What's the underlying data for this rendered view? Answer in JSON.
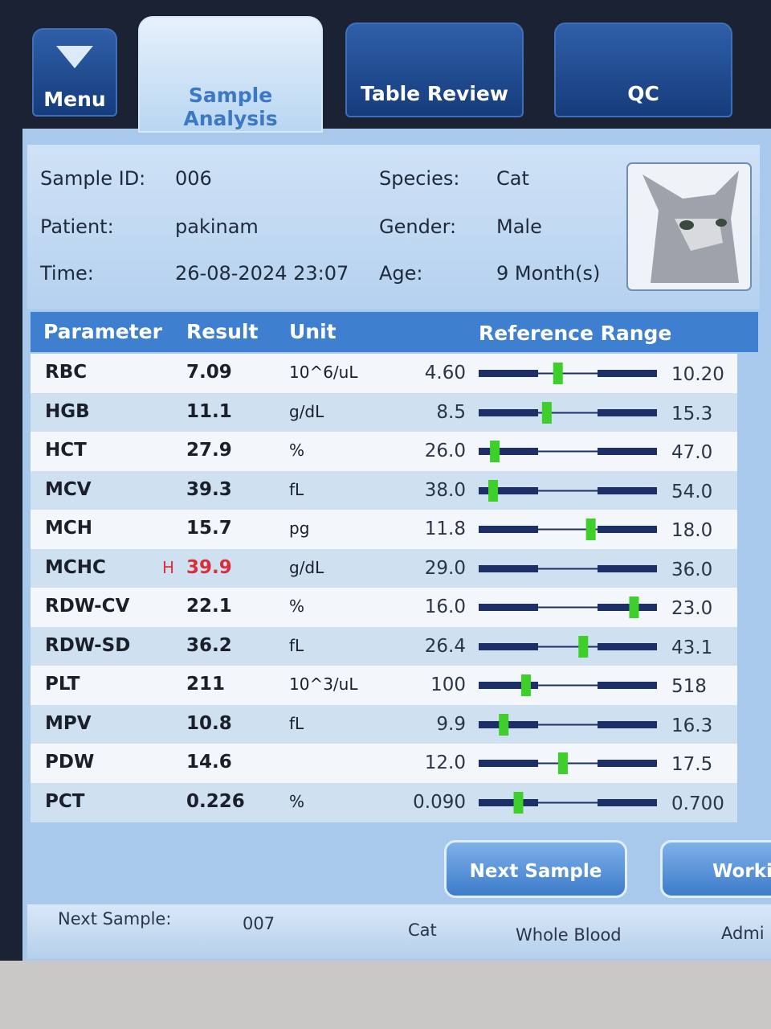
{
  "tabs": [
    "Menu",
    "Sample Analysis",
    "Table Review",
    "QC"
  ],
  "info": [
    {
      "label": "Sample ID:",
      "value": "006"
    },
    {
      "label": "Species:",
      "value": "Cat"
    },
    {
      "label": "Patient:",
      "value": "pakinam"
    },
    {
      "label": "Gender:",
      "value": "Male"
    },
    {
      "label": "Time:",
      "value": "26-08-2024 23:07"
    },
    {
      "label": "Age:",
      "value": "9 Month(s)"
    }
  ],
  "table": {
    "headers": [
      "Parameter",
      "Result",
      "Unit",
      "Reference Range"
    ],
    "rows": [
      {
        "parameter": "RBC",
        "result": "7.09",
        "unit": "10^6/uL",
        "low": "4.60",
        "high": "10.20"
      },
      {
        "parameter": "HGB",
        "result": "11.1",
        "unit": "g/dL",
        "low": "8.5",
        "high": "15.3"
      },
      {
        "parameter": "HCT",
        "result": "27.9",
        "unit": "%",
        "low": "26.0",
        "high": "47.0"
      },
      {
        "parameter": "MCV",
        "result": "39.3",
        "unit": "fL",
        "low": "38.0",
        "high": "54.0"
      },
      {
        "parameter": "MCH",
        "result": "15.7",
        "unit": "pg",
        "low": "11.8",
        "high": "18.0"
      },
      {
        "parameter": "MCHC",
        "flag": "H",
        "result": "39.9",
        "unit": "g/dL",
        "low": "29.0",
        "high": "36.0"
      },
      {
        "parameter": "RDW-CV",
        "result": "22.1",
        "unit": "%",
        "low": "16.0",
        "high": "23.0"
      },
      {
        "parameter": "RDW-SD",
        "result": "36.2",
        "unit": "fL",
        "low": "26.4",
        "high": "43.1"
      },
      {
        "parameter": "PLT",
        "result": "211",
        "unit": "10^3/uL",
        "low": "100",
        "high": "518"
      },
      {
        "parameter": "MPV",
        "result": "10.8",
        "unit": "fL",
        "low": "9.9",
        "high": "16.3"
      },
      {
        "parameter": "PDW",
        "result": "14.6",
        "low": "12.0",
        "high": "17.5"
      },
      {
        "parameter": "PCT",
        "result": "0.226",
        "unit": "%",
        "low": "0.090",
        "high": "0.700"
      }
    ]
  },
  "buttons": [
    "Next Sample",
    "Worki"
  ],
  "status": {
    "label": "Next Sample:",
    "id": "007",
    "species": "Cat",
    "mode": "Whole Blood",
    "user": "Admi"
  }
}
